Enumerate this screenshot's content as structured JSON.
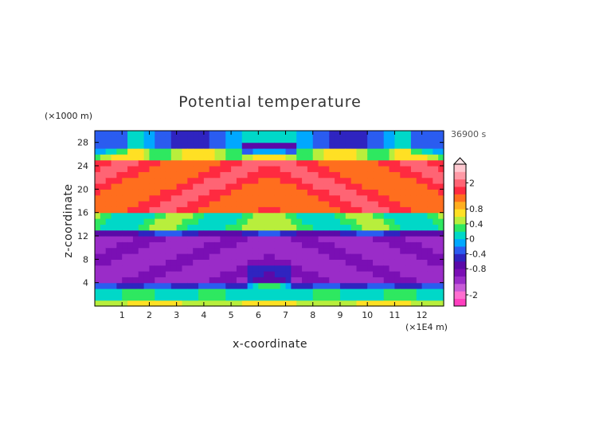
{
  "chart_data": {
    "type": "heatmap",
    "title": "Potential temperature",
    "xlabel": "x-coordinate",
    "ylabel": "z-coordinate",
    "x_unit": "(×1E4 m)",
    "y_unit": "(×1000 m)",
    "time_label": "36900 s",
    "xlim": [
      0,
      12.8
    ],
    "ylim": [
      0,
      30
    ],
    "x_ticks": [
      "1",
      "2",
      "3",
      "4",
      "5",
      "6",
      "7",
      "8",
      "9",
      "10",
      "11",
      "12"
    ],
    "y_ticks": [
      "4",
      "8",
      "12",
      "16",
      "20",
      "24",
      "28"
    ],
    "colorbar": {
      "levels": [
        -2.6,
        -2.2,
        -1.8,
        -1.4,
        -1.0,
        -0.8,
        -0.6,
        -0.4,
        -0.2,
        0,
        0.2,
        0.4,
        0.6,
        0.8,
        1.0,
        1.4,
        1.8,
        2.2,
        2.6
      ],
      "colors": [
        "#ff3fbf",
        "#ff6fd0",
        "#c75bd8",
        "#9a2cc8",
        "#7a0fb4",
        "#5b0aa8",
        "#2f24c0",
        "#2a5cf0",
        "#00a8ff",
        "#00d8c8",
        "#2ee860",
        "#b8ee3c",
        "#ffe024",
        "#ffae1e",
        "#ff6e1e",
        "#ff2a40",
        "#ff6474",
        "#ff9aa6",
        "#ffc8d0"
      ],
      "tick_labels": [
        "-2",
        "-0.8",
        "-0.4",
        "0",
        "0.4",
        "0.8",
        "2"
      ],
      "tick_values": [
        -2.0,
        -0.8,
        -0.4,
        0,
        0.4,
        0.8,
        2.0
      ],
      "extend": "max"
    },
    "field_description_bands": [
      {
        "z_range": [
          0,
          1.5
        ],
        "value": 0.7
      },
      {
        "z_range": [
          1.5,
          4
        ],
        "value": 0.0
      },
      {
        "z_range": [
          4,
          6
        ],
        "value": -0.7
      },
      {
        "z_range": [
          6,
          12
        ],
        "value": -1.0
      },
      {
        "z_range": [
          12,
          14
        ],
        "value": -0.3
      },
      {
        "z_range": [
          14,
          16
        ],
        "value": 0.5
      },
      {
        "z_range": [
          16,
          26
        ],
        "value": 1.5
      },
      {
        "z_range": [
          26,
          28
        ],
        "value": 0.6
      },
      {
        "z_range": [
          28,
          30
        ],
        "value": -0.2
      }
    ]
  }
}
